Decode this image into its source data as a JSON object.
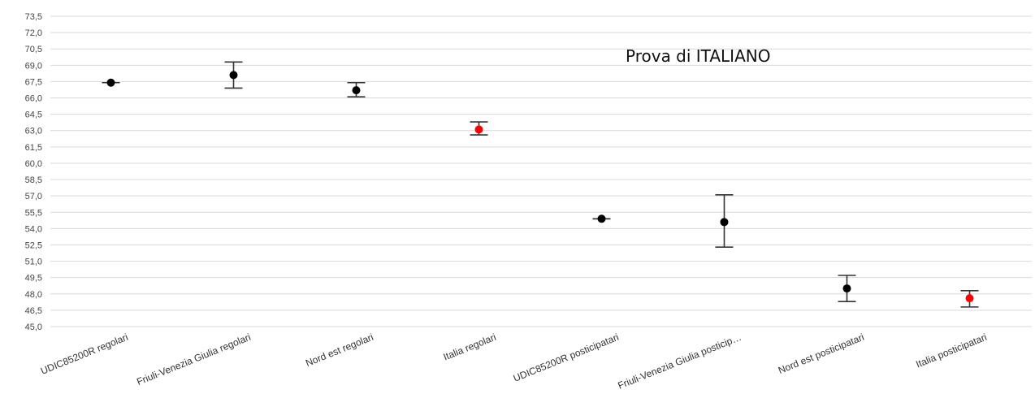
{
  "chart_data": {
    "type": "scatter",
    "title": "Prova di ITALIANO",
    "ylim": [
      45.0,
      73.5
    ],
    "ytick_step": 1.5,
    "grid": true,
    "categories": [
      "UDIC85200R regolari",
      "Friuli-Venezia Giulia regolari",
      "Nord est regolari",
      "Italia regolari",
      "UDIC85200R posticipatari",
      "Friuli-Venezia Giulia posticip…",
      "Nord est posticipatari",
      "Italia posticipatari"
    ],
    "values": [
      67.4,
      68.1,
      66.7,
      63.1,
      54.9,
      54.6,
      48.5,
      47.6
    ],
    "lower": [
      67.4,
      66.9,
      66.1,
      62.6,
      54.9,
      52.3,
      47.3,
      46.8
    ],
    "upper": [
      67.4,
      69.3,
      67.4,
      63.8,
      54.9,
      57.1,
      49.7,
      48.3
    ],
    "point_colors": [
      "#000000",
      "#000000",
      "#000000",
      "#ff0000",
      "#000000",
      "#000000",
      "#000000",
      "#ff0000"
    ]
  }
}
